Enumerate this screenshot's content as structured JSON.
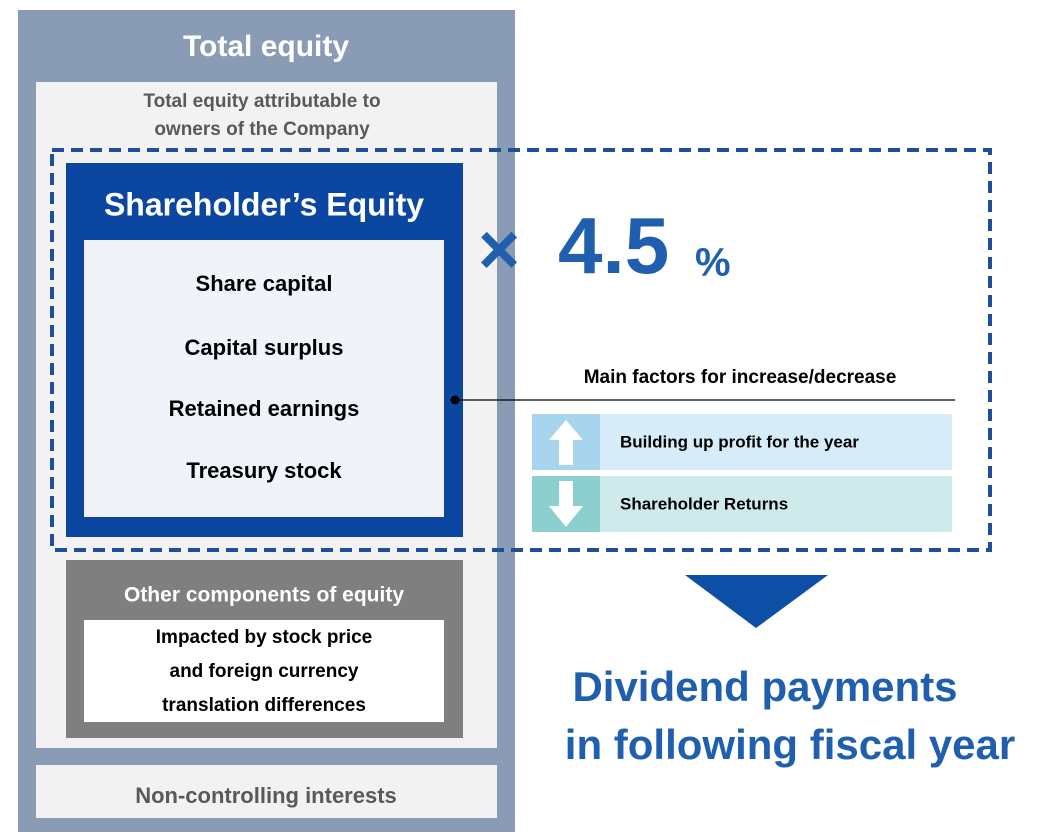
{
  "total_equity": {
    "title": "Total equity",
    "attributable": {
      "title_lines": [
        "Total equity attributable to",
        "owners of the Company"
      ],
      "shareholders_equity": {
        "title": "Shareholder’s Equity",
        "items": [
          "Share capital",
          "Capital surplus",
          "Retained earnings",
          "Treasury stock"
        ]
      },
      "other_components": {
        "title": "Other components of equity",
        "note_lines": [
          "Impacted by stock price",
          "and foreign currency",
          "translation differences"
        ]
      }
    },
    "non_controlling": "Non-controlling interests"
  },
  "multiplier": {
    "symbol": "×",
    "value": 4.5,
    "unit": "%"
  },
  "factors": {
    "title": "Main factors for increase/decrease",
    "increase": "Building up profit for the year",
    "decrease": "Shareholder Returns"
  },
  "result_lines": [
    "Dividend payments",
    "in following fiscal year"
  ]
}
